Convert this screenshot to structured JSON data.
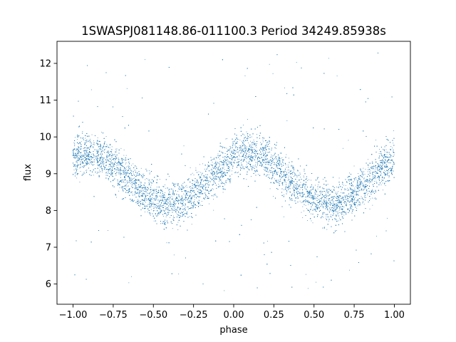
{
  "chart_data": {
    "type": "scatter",
    "title": "1SWASPJ081148.86-011100.3 Period 34249.85938s",
    "xlabel": "phase",
    "ylabel": "flux",
    "xlim": [
      -1.1,
      1.1
    ],
    "ylim": [
      5.45,
      12.6
    ],
    "x_ticks": [
      -1.0,
      -0.75,
      -0.5,
      -0.25,
      0.0,
      0.25,
      0.5,
      0.75,
      1.0
    ],
    "x_tick_labels": [
      "−1.00",
      "−0.75",
      "−0.50",
      "−0.25",
      "0.00",
      "0.25",
      "0.50",
      "0.75",
      "1.00"
    ],
    "y_ticks": [
      6,
      7,
      8,
      9,
      10,
      11,
      12
    ],
    "y_tick_labels": [
      "6",
      "7",
      "8",
      "9",
      "10",
      "11",
      "12"
    ],
    "grid": false,
    "marker_color": "#1f77b4",
    "series": [
      {
        "points_note_free": true,
        "x_range": [
          -1.0,
          1.0
        ],
        "model": {
          "kind": "sinusoid",
          "mean": 8.85,
          "amplitude": 0.68,
          "maximum_phase": 0.1,
          "period_in_phase": 1.0,
          "scatter": 0.28,
          "outlier_range": [
            5.8,
            12.3
          ]
        },
        "sample_points": [
          [
            -1.0,
            9.45
          ],
          [
            -0.9,
            9.52
          ],
          [
            -0.8,
            9.45
          ],
          [
            -0.7,
            9.2
          ],
          [
            -0.6,
            8.82
          ],
          [
            -0.5,
            8.45
          ],
          [
            -0.4,
            8.2
          ],
          [
            -0.35,
            8.17
          ],
          [
            -0.3,
            8.2
          ],
          [
            -0.2,
            8.45
          ],
          [
            -0.1,
            8.88
          ],
          [
            0.0,
            9.3
          ],
          [
            0.1,
            9.53
          ],
          [
            0.2,
            9.47
          ],
          [
            0.3,
            9.22
          ],
          [
            0.4,
            8.85
          ],
          [
            0.5,
            8.45
          ],
          [
            0.6,
            8.2
          ],
          [
            0.65,
            8.17
          ],
          [
            0.7,
            8.2
          ],
          [
            0.8,
            8.47
          ],
          [
            0.9,
            8.88
          ],
          [
            1.0,
            9.3
          ]
        ]
      }
    ]
  }
}
